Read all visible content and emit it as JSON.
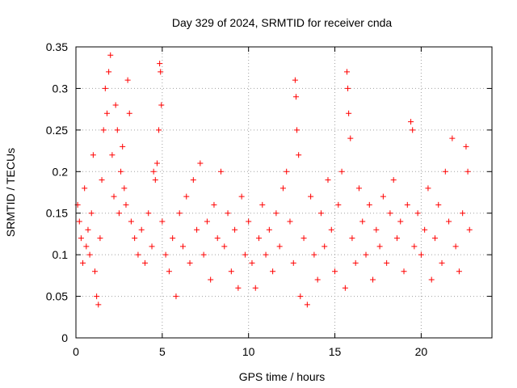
{
  "chart_data": {
    "type": "scatter",
    "title": "Day 329 of 2024, SRMTID for receiver cnda",
    "xlabel": "GPS time / hours",
    "ylabel": "SRMTID / TECUs",
    "xlim": [
      0,
      24.1
    ],
    "ylim": [
      0,
      0.35
    ],
    "xticks": [
      0,
      5,
      10,
      15,
      20
    ],
    "xtick_labels": [
      "0",
      "5",
      "10",
      "15",
      "20"
    ],
    "yticks": [
      0,
      0.05,
      0.1,
      0.15,
      0.2,
      0.25,
      0.3,
      0.35
    ],
    "ytick_labels": [
      "0",
      "0.05",
      "0.1",
      "0.15",
      "0.2",
      "0.25",
      "0.3",
      "0.35"
    ],
    "grid": true,
    "marker": "plus",
    "marker_color": "#ff0000",
    "series": [
      {
        "name": "SRMTID",
        "points": [
          [
            0.1,
            0.16
          ],
          [
            0.2,
            0.14
          ],
          [
            0.3,
            0.12
          ],
          [
            0.4,
            0.09
          ],
          [
            0.5,
            0.18
          ],
          [
            0.6,
            0.11
          ],
          [
            0.7,
            0.13
          ],
          [
            0.8,
            0.1
          ],
          [
            0.9,
            0.15
          ],
          [
            1.0,
            0.22
          ],
          [
            1.1,
            0.08
          ],
          [
            1.2,
            0.05
          ],
          [
            1.3,
            0.04
          ],
          [
            1.4,
            0.12
          ],
          [
            1.5,
            0.19
          ],
          [
            1.6,
            0.25
          ],
          [
            1.7,
            0.3
          ],
          [
            1.8,
            0.27
          ],
          [
            1.9,
            0.32
          ],
          [
            2.0,
            0.34
          ],
          [
            2.1,
            0.22
          ],
          [
            2.2,
            0.17
          ],
          [
            2.3,
            0.28
          ],
          [
            2.4,
            0.25
          ],
          [
            2.5,
            0.15
          ],
          [
            2.6,
            0.2
          ],
          [
            2.7,
            0.23
          ],
          [
            2.8,
            0.18
          ],
          [
            2.9,
            0.16
          ],
          [
            3.0,
            0.31
          ],
          [
            3.1,
            0.27
          ],
          [
            3.2,
            0.14
          ],
          [
            3.4,
            0.12
          ],
          [
            3.6,
            0.1
          ],
          [
            3.8,
            0.13
          ],
          [
            4.0,
            0.09
          ],
          [
            4.2,
            0.15
          ],
          [
            4.4,
            0.11
          ],
          [
            4.5,
            0.2
          ],
          [
            4.6,
            0.19
          ],
          [
            4.7,
            0.21
          ],
          [
            4.8,
            0.25
          ],
          [
            4.85,
            0.33
          ],
          [
            4.9,
            0.32
          ],
          [
            4.95,
            0.28
          ],
          [
            5.0,
            0.14
          ],
          [
            5.2,
            0.1
          ],
          [
            5.4,
            0.08
          ],
          [
            5.6,
            0.12
          ],
          [
            5.8,
            0.05
          ],
          [
            6.0,
            0.15
          ],
          [
            6.2,
            0.11
          ],
          [
            6.4,
            0.17
          ],
          [
            6.6,
            0.09
          ],
          [
            6.8,
            0.19
          ],
          [
            7.0,
            0.13
          ],
          [
            7.2,
            0.21
          ],
          [
            7.4,
            0.1
          ],
          [
            7.6,
            0.14
          ],
          [
            7.8,
            0.07
          ],
          [
            8.0,
            0.16
          ],
          [
            8.2,
            0.12
          ],
          [
            8.4,
            0.2
          ],
          [
            8.6,
            0.11
          ],
          [
            8.8,
            0.15
          ],
          [
            9.0,
            0.08
          ],
          [
            9.2,
            0.13
          ],
          [
            9.4,
            0.06
          ],
          [
            9.6,
            0.17
          ],
          [
            9.8,
            0.1
          ],
          [
            10.0,
            0.14
          ],
          [
            10.2,
            0.09
          ],
          [
            10.4,
            0.06
          ],
          [
            10.6,
            0.12
          ],
          [
            10.8,
            0.16
          ],
          [
            11.0,
            0.1
          ],
          [
            11.2,
            0.13
          ],
          [
            11.4,
            0.08
          ],
          [
            11.6,
            0.15
          ],
          [
            11.8,
            0.11
          ],
          [
            12.0,
            0.18
          ],
          [
            12.2,
            0.2
          ],
          [
            12.4,
            0.14
          ],
          [
            12.6,
            0.09
          ],
          [
            12.7,
            0.31
          ],
          [
            12.75,
            0.29
          ],
          [
            12.8,
            0.25
          ],
          [
            12.9,
            0.22
          ],
          [
            13.0,
            0.05
          ],
          [
            13.2,
            0.12
          ],
          [
            13.4,
            0.04
          ],
          [
            13.6,
            0.17
          ],
          [
            13.8,
            0.1
          ],
          [
            14.0,
            0.07
          ],
          [
            14.2,
            0.15
          ],
          [
            14.4,
            0.11
          ],
          [
            14.6,
            0.19
          ],
          [
            14.8,
            0.13
          ],
          [
            15.0,
            0.08
          ],
          [
            15.2,
            0.16
          ],
          [
            15.4,
            0.2
          ],
          [
            15.6,
            0.06
          ],
          [
            15.7,
            0.32
          ],
          [
            15.75,
            0.3
          ],
          [
            15.8,
            0.27
          ],
          [
            15.9,
            0.24
          ],
          [
            16.0,
            0.12
          ],
          [
            16.2,
            0.09
          ],
          [
            16.4,
            0.18
          ],
          [
            16.6,
            0.14
          ],
          [
            16.8,
            0.1
          ],
          [
            17.0,
            0.16
          ],
          [
            17.2,
            0.07
          ],
          [
            17.4,
            0.13
          ],
          [
            17.6,
            0.11
          ],
          [
            17.8,
            0.17
          ],
          [
            18.0,
            0.09
          ],
          [
            18.2,
            0.15
          ],
          [
            18.4,
            0.19
          ],
          [
            18.6,
            0.12
          ],
          [
            18.8,
            0.14
          ],
          [
            19.0,
            0.08
          ],
          [
            19.2,
            0.16
          ],
          [
            19.4,
            0.26
          ],
          [
            19.5,
            0.25
          ],
          [
            19.6,
            0.11
          ],
          [
            19.8,
            0.15
          ],
          [
            20.0,
            0.1
          ],
          [
            20.2,
            0.13
          ],
          [
            20.4,
            0.18
          ],
          [
            20.6,
            0.07
          ],
          [
            20.8,
            0.12
          ],
          [
            21.0,
            0.16
          ],
          [
            21.2,
            0.09
          ],
          [
            21.4,
            0.2
          ],
          [
            21.6,
            0.14
          ],
          [
            21.8,
            0.24
          ],
          [
            22.0,
            0.11
          ],
          [
            22.2,
            0.08
          ],
          [
            22.4,
            0.15
          ],
          [
            22.6,
            0.23
          ],
          [
            22.7,
            0.2
          ],
          [
            22.8,
            0.13
          ]
        ]
      }
    ]
  }
}
